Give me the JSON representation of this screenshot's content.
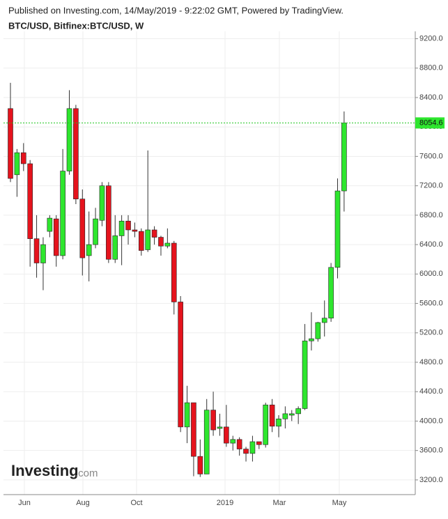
{
  "chart_data": {
    "type": "candlestick",
    "published": "Published on Investing.com, 14/May/2019 - 9:22:02 GMT, Powered by TradingView.",
    "title": "BTC/USD, Bitfinex:BTC/USD, W",
    "watermark": "Investing",
    "watermark_suffix": ".com",
    "up_color": "#2ee62e",
    "down_color": "#e5131d",
    "last_line_color": "#22c722",
    "grid": true,
    "xtick_labels": [
      "Jun",
      "Aug",
      "Oct",
      "2019",
      "Mar",
      "May"
    ],
    "ylim": [
      3000,
      9300
    ],
    "yticks": [
      {
        "value": 3200,
        "label": "3200.0"
      },
      {
        "value": 3600,
        "label": "3600.0"
      },
      {
        "value": 4000,
        "label": "4000.0"
      },
      {
        "value": 4400,
        "label": "4400.0"
      },
      {
        "value": 4800,
        "label": "4800.0"
      },
      {
        "value": 5200,
        "label": "5200.0"
      },
      {
        "value": 5600,
        "label": "5600.0"
      },
      {
        "value": 6000,
        "label": "6000.0"
      },
      {
        "value": 6400,
        "label": "6400.0"
      },
      {
        "value": 6800,
        "label": "6800.0"
      },
      {
        "value": 7200,
        "label": "7200.0"
      },
      {
        "value": 7600,
        "label": "7600.0"
      },
      {
        "value": 8000,
        "label": "8000.0"
      },
      {
        "value": 8400,
        "label": "8400.0"
      },
      {
        "value": 8800,
        "label": "8800.0"
      },
      {
        "value": 9200,
        "label": "9200.0"
      }
    ],
    "series": [
      {
        "name": "BTC/USD",
        "open": [
          8250,
          7350,
          7650,
          7500,
          6480,
          6150,
          6580,
          6750,
          6250,
          7400,
          8250,
          7020,
          6250,
          6400,
          6730,
          7200,
          6200,
          6520,
          6720,
          6600,
          6580,
          6330,
          6600,
          6500,
          6380,
          6420,
          5620,
          3920,
          4250,
          3520,
          3280,
          4150,
          3900,
          3920,
          3700,
          3750,
          3620,
          3560,
          3720,
          3680,
          4220,
          3930,
          4030,
          4080,
          4100,
          4170,
          5090,
          5120,
          5340,
          5400,
          6090,
          7130
        ],
        "high": [
          8600,
          7700,
          7780,
          7550,
          6800,
          6500,
          6800,
          6800,
          7700,
          8500,
          8300,
          7150,
          6850,
          6900,
          7250,
          7250,
          6800,
          6800,
          6800,
          6700,
          6620,
          7680,
          6650,
          6520,
          6620,
          6450,
          5700,
          4480,
          4250,
          3750,
          4300,
          4400,
          4100,
          4220,
          3800,
          3780,
          3650,
          3800,
          3720,
          4250,
          4300,
          4080,
          4200,
          4150,
          4200,
          5320,
          5480,
          5350,
          5640,
          6150,
          7300,
          8210
        ],
        "low": [
          7250,
          7050,
          7400,
          6100,
          5950,
          5780,
          6500,
          6100,
          6200,
          7350,
          6950,
          5980,
          5900,
          6350,
          6650,
          6150,
          6150,
          6120,
          6400,
          6500,
          6250,
          6300,
          6400,
          6250,
          6350,
          5450,
          3850,
          3700,
          3250,
          3240,
          3280,
          3800,
          3800,
          3650,
          3600,
          3530,
          3450,
          3450,
          3620,
          3640,
          3850,
          3780,
          3900,
          4000,
          3960,
          4150,
          4960,
          5080,
          5150,
          5350,
          5940,
          6850
        ],
        "close": [
          7300,
          7650,
          7500,
          6480,
          6150,
          6400,
          6760,
          6250,
          7400,
          8250,
          7020,
          6220,
          6400,
          6750,
          7200,
          6200,
          6520,
          6720,
          6600,
          6580,
          6320,
          6600,
          6500,
          6380,
          6420,
          5620,
          3920,
          4250,
          3520,
          3280,
          4150,
          3880,
          3920,
          3700,
          3750,
          3620,
          3560,
          3720,
          3680,
          4220,
          3930,
          4030,
          4100,
          4100,
          4170,
          5090,
          5120,
          5340,
          5400,
          6090,
          7130,
          8054.6
        ]
      }
    ]
  }
}
